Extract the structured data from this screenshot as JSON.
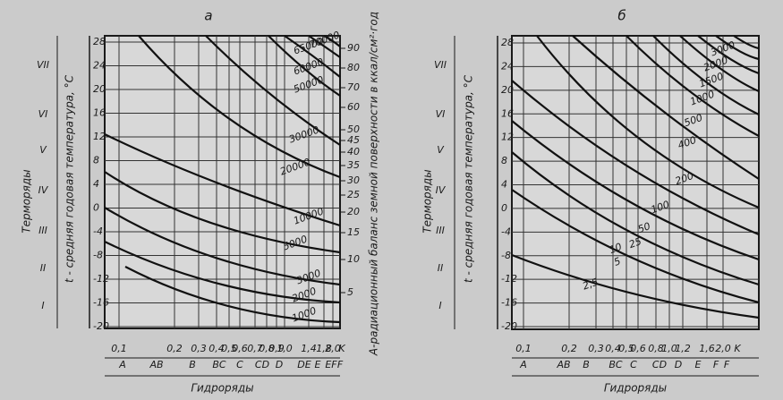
{
  "panels": [
    {
      "title": "а",
      "side_label": "Терморяды",
      "left_label": "t - средняя годовая температура, °C",
      "t_ticks": [
        28,
        24,
        20,
        16,
        12,
        8,
        4,
        0,
        -4,
        -8,
        -12,
        -16,
        -20
      ],
      "thermo": [
        "VII",
        "VI",
        "V",
        "IV",
        "III",
        "II",
        "I"
      ],
      "right_label": "A-радиационный баланс земной поверхности в ккал/см²·год",
      "right_ticks": [
        90,
        80,
        70,
        60,
        50,
        45,
        40,
        35,
        30,
        25,
        20,
        15,
        10,
        5
      ],
      "k_ticks": [
        "0,1",
        "0,2",
        "0,3",
        "0,4",
        "0,5",
        "0,6",
        "0,7",
        "0,8",
        "0,9",
        "1,0",
        "1,4",
        "1,8",
        "2,0",
        "K"
      ],
      "hydro": [
        "A",
        "AB",
        "B",
        "BC",
        "C",
        "CD",
        "D",
        "DE",
        "E",
        "EF",
        "F"
      ],
      "hydro_label": "Гидроряды",
      "curve_labels": [
        "1000",
        "2000",
        "3000",
        "5000",
        "10000",
        "20000",
        "30000",
        "50000",
        "60000",
        "65000",
        "70000"
      ]
    },
    {
      "title": "б",
      "side_label": "Терморяды",
      "left_label": "t - средняя годовая температура, °C",
      "t_ticks": [
        28,
        24,
        20,
        16,
        12,
        8,
        4,
        0,
        -4,
        -8,
        -12,
        -16,
        -20
      ],
      "thermo": [
        "VII",
        "VI",
        "V",
        "IV",
        "III",
        "II",
        "I"
      ],
      "k_ticks": [
        "0,1",
        "0,2",
        "0,3",
        "0,4",
        "0,5",
        "0,6",
        "0,8",
        "1,0",
        "1,2",
        "1,6",
        "2,0",
        "K"
      ],
      "hydro": [
        "A",
        "AB",
        "B",
        "BC",
        "C",
        "CD",
        "D",
        "E",
        "F",
        "F"
      ],
      "hydro_label": "Гидроряды",
      "curve_labels": [
        "2,5",
        "5",
        "10",
        "25",
        "50",
        "100",
        "200",
        "400",
        "500",
        "1000",
        "1500",
        "2000",
        "3000"
      ]
    }
  ]
}
